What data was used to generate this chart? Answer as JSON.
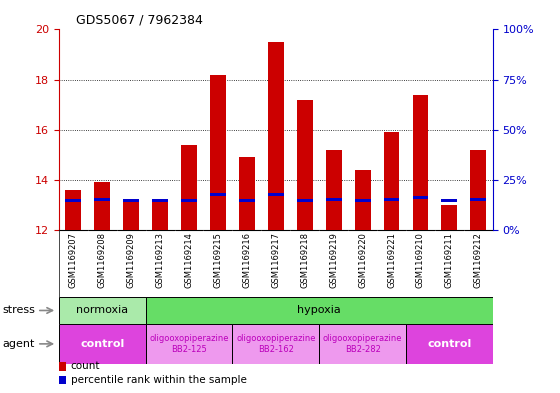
{
  "title": "GDS5067 / 7962384",
  "samples": [
    "GSM1169207",
    "GSM1169208",
    "GSM1169209",
    "GSM1169213",
    "GSM1169214",
    "GSM1169215",
    "GSM1169216",
    "GSM1169217",
    "GSM1169218",
    "GSM1169219",
    "GSM1169220",
    "GSM1169221",
    "GSM1169210",
    "GSM1169211",
    "GSM1169212"
  ],
  "bar_values": [
    13.6,
    13.9,
    13.1,
    13.1,
    15.4,
    18.2,
    14.9,
    19.5,
    17.2,
    15.2,
    14.4,
    15.9,
    17.4,
    13.0,
    15.2
  ],
  "bar_base": 12,
  "blue_marker_values": [
    13.1,
    13.15,
    13.1,
    13.1,
    13.1,
    13.35,
    13.1,
    13.35,
    13.1,
    13.15,
    13.1,
    13.15,
    13.25,
    13.1,
    13.15
  ],
  "blue_marker_heights": [
    0.12,
    0.12,
    0.12,
    0.12,
    0.12,
    0.12,
    0.12,
    0.12,
    0.12,
    0.12,
    0.12,
    0.12,
    0.12,
    0.12,
    0.12
  ],
  "ylim_left": [
    12,
    20
  ],
  "ylim_right": [
    0,
    100
  ],
  "yticks_left": [
    12,
    14,
    16,
    18,
    20
  ],
  "yticks_right": [
    0,
    25,
    50,
    75,
    100
  ],
  "ytick_right_labels": [
    "0%",
    "25%",
    "50%",
    "75%",
    "100%"
  ],
  "bar_color": "#cc0000",
  "blue_color": "#0000cc",
  "bar_width": 0.55,
  "normoxia_color": "#aaeaaa",
  "hypoxia_color": "#66dd66",
  "control_color": "#dd44dd",
  "oligo_color": "#ee99ee",
  "oligo_text_color": "#bb00bb",
  "control_text_color": "#ffffff",
  "stress_label": "stress",
  "agent_label": "agent",
  "legend_count": "count",
  "legend_percentile": "percentile rank within the sample",
  "bg_color": "#ffffff",
  "plot_bg": "#ffffff",
  "tick_label_color_left": "#cc0000",
  "tick_label_color_right": "#0000cc",
  "sample_bg": "#cccccc"
}
